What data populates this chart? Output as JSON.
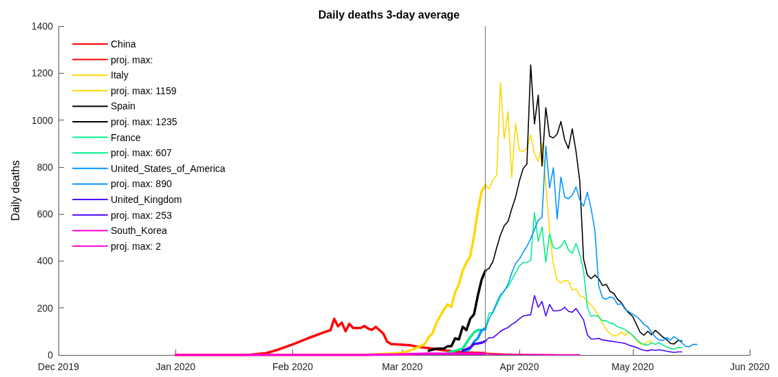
{
  "chart_data": {
    "type": "line",
    "title": "Daily deaths 3-day average",
    "ylabel": "Daily deaths",
    "xlim": [
      "2019-12-01",
      "2020-06-01"
    ],
    "xticks": [
      {
        "value": "2019-12-01",
        "label": "Dec 2019"
      },
      {
        "value": "2020-01-01",
        "label": "Jan 2020"
      },
      {
        "value": "2020-02-01",
        "label": "Feb 2020"
      },
      {
        "value": "2020-03-01",
        "label": "Mar 2020"
      },
      {
        "value": "2020-04-01",
        "label": "Apr 2020"
      },
      {
        "value": "2020-05-01",
        "label": "May 2020"
      },
      {
        "value": "2020-06-01",
        "label": "Jun 2020"
      }
    ],
    "ylim": [
      0,
      1400
    ],
    "yticks": [
      0,
      200,
      400,
      600,
      800,
      1000,
      1200,
      1400
    ],
    "grid": false,
    "legend": "top left",
    "marker": "none",
    "line_style": "solid",
    "ref_lines": [
      {
        "axis": "x",
        "value": "2020-03-23",
        "label": null,
        "color": "#707070"
      }
    ],
    "series": [
      {
        "name": "China",
        "color": "#ff0000",
        "x": [
          "2020-01-01",
          "2020-01-20",
          "2020-01-25",
          "2020-01-28",
          "2020-02-01",
          "2020-02-05",
          "2020-02-10",
          "2020-02-11",
          "2020-02-12",
          "2020-02-13",
          "2020-02-14",
          "2020-02-15",
          "2020-02-16",
          "2020-02-17",
          "2020-02-19",
          "2020-02-20",
          "2020-02-21",
          "2020-02-22",
          "2020-02-23",
          "2020-02-25",
          "2020-02-26",
          "2020-02-27",
          "2020-02-29",
          "2020-03-03",
          "2020-03-05",
          "2020-03-08",
          "2020-03-11",
          "2020-03-14",
          "2020-03-17",
          "2020-03-23"
        ],
        "values": [
          0,
          0,
          8,
          22,
          45,
          71,
          101,
          105,
          154,
          122,
          138,
          101,
          133,
          115,
          115,
          124,
          112,
          107,
          120,
          91,
          57,
          47,
          45,
          42,
          35,
          29,
          22,
          16,
          11,
          8
        ]
      },
      {
        "name": "proj. max:",
        "color": "#ff0000",
        "x": [
          "2020-03-23",
          "2020-03-28",
          "2020-04-03",
          "2020-04-10"
        ],
        "values": [
          8,
          4,
          2,
          1
        ]
      },
      {
        "name": "Italy",
        "color": "#ffd700",
        "x": [
          "2020-01-01",
          "2020-02-20",
          "2020-02-29",
          "2020-03-02",
          "2020-03-04",
          "2020-03-06",
          "2020-03-07",
          "2020-03-08",
          "2020-03-09",
          "2020-03-10",
          "2020-03-11",
          "2020-03-12",
          "2020-03-13",
          "2020-03-14",
          "2020-03-15",
          "2020-03-16",
          "2020-03-17",
          "2020-03-18",
          "2020-03-19",
          "2020-03-20",
          "2020-03-21",
          "2020-03-22",
          "2020-03-23"
        ],
        "values": [
          0,
          0,
          8,
          13,
          25,
          39,
          47,
          76,
          91,
          135,
          164,
          193,
          215,
          205,
          267,
          301,
          359,
          394,
          420,
          506,
          613,
          696,
          723
        ]
      },
      {
        "name": "proj. max: 1159",
        "color": "#ffd700",
        "x": [
          "2020-03-23",
          "2020-03-24",
          "2020-03-25",
          "2020-03-26",
          "2020-03-27",
          "2020-03-28",
          "2020-03-29",
          "2020-03-30",
          "2020-03-31",
          "2020-04-01",
          "2020-04-02",
          "2020-04-03",
          "2020-04-04",
          "2020-04-05",
          "2020-04-06",
          "2020-04-07",
          "2020-04-08",
          "2020-04-09",
          "2020-04-10",
          "2020-04-11",
          "2020-04-12",
          "2020-04-13",
          "2020-04-14",
          "2020-04-15",
          "2020-04-16",
          "2020-04-17",
          "2020-04-18",
          "2020-04-19",
          "2020-04-20",
          "2020-04-21",
          "2020-04-22",
          "2020-04-23",
          "2020-04-24",
          "2020-04-25",
          "2020-04-26",
          "2020-04-27",
          "2020-04-28",
          "2020-04-29",
          "2020-04-30",
          "2020-05-01",
          "2020-05-02",
          "2020-05-03",
          "2020-05-04",
          "2020-05-05",
          "2020-05-06"
        ],
        "values": [
          723,
          706,
          745,
          765,
          1159,
          921,
          1036,
          755,
          986,
          872,
          865,
          882,
          936,
          857,
          823,
          901,
          730,
          525,
          384,
          320,
          306,
          318,
          313,
          276,
          281,
          252,
          247,
          228,
          213,
          193,
          164,
          135,
          110,
          91,
          81,
          84,
          98,
          84,
          98,
          81,
          62,
          47,
          45,
          57,
          59
        ]
      },
      {
        "name": "Spain",
        "color": "#000000",
        "x": [
          "2020-03-08",
          "2020-03-10",
          "2020-03-12",
          "2020-03-13",
          "2020-03-14",
          "2020-03-15",
          "2020-03-16",
          "2020-03-17",
          "2020-03-18",
          "2020-03-19",
          "2020-03-20",
          "2020-03-21",
          "2020-03-22",
          "2020-03-23"
        ],
        "values": [
          18,
          27,
          27,
          37,
          37,
          71,
          66,
          120,
          106,
          154,
          173,
          252,
          320,
          359
        ]
      },
      {
        "name": "proj. max: 1235",
        "color": "#000000",
        "x": [
          "2020-03-23",
          "2020-03-24",
          "2020-03-25",
          "2020-03-26",
          "2020-03-27",
          "2020-03-28",
          "2020-03-29",
          "2020-03-30",
          "2020-03-31",
          "2020-04-01",
          "2020-04-02",
          "2020-04-03",
          "2020-04-04",
          "2020-04-05",
          "2020-04-06",
          "2020-04-07",
          "2020-04-08",
          "2020-04-09",
          "2020-04-10",
          "2020-04-11",
          "2020-04-12",
          "2020-04-13",
          "2020-04-14",
          "2020-04-15",
          "2020-04-16",
          "2020-04-17",
          "2020-04-18",
          "2020-04-19",
          "2020-04-20",
          "2020-04-21",
          "2020-04-22",
          "2020-04-23",
          "2020-04-24",
          "2020-04-25",
          "2020-04-26",
          "2020-04-27",
          "2020-04-28",
          "2020-04-29",
          "2020-04-30",
          "2020-05-01",
          "2020-05-02",
          "2020-05-03",
          "2020-05-04",
          "2020-05-05",
          "2020-05-06",
          "2020-05-07",
          "2020-05-08",
          "2020-05-09",
          "2020-05-10",
          "2020-05-11",
          "2020-05-12",
          "2020-05-13",
          "2020-05-14"
        ],
        "values": [
          359,
          369,
          398,
          457,
          511,
          550,
          569,
          623,
          672,
          740,
          794,
          813,
          1235,
          984,
          1106,
          804,
          1053,
          931,
          924,
          940,
          994,
          916,
          879,
          963,
          867,
          740,
          408,
          340,
          325,
          340,
          325,
          296,
          301,
          271,
          262,
          237,
          223,
          198,
          179,
          164,
          130,
          96,
          84,
          101,
          86,
          105,
          91,
          76,
          66,
          49,
          47,
          62,
          59
        ]
      },
      {
        "name": "France",
        "color": "#00ef8a",
        "x": [
          "2020-03-13",
          "2020-03-15",
          "2020-03-17",
          "2020-03-18",
          "2020-03-19",
          "2020-03-20",
          "2020-03-21",
          "2020-03-22",
          "2020-03-23"
        ],
        "values": [
          10,
          18,
          27,
          52,
          76,
          96,
          107,
          105,
          115
        ]
      },
      {
        "name": "proj. max: 607",
        "color": "#00ef8a",
        "x": [
          "2020-03-23",
          "2020-03-24",
          "2020-03-25",
          "2020-03-26",
          "2020-03-27",
          "2020-03-28",
          "2020-03-29",
          "2020-03-30",
          "2020-03-31",
          "2020-04-01",
          "2020-04-02",
          "2020-04-03",
          "2020-04-04",
          "2020-04-05",
          "2020-04-06",
          "2020-04-07",
          "2020-04-08",
          "2020-04-09",
          "2020-04-10",
          "2020-04-11",
          "2020-04-12",
          "2020-04-13",
          "2020-04-14",
          "2020-04-15",
          "2020-04-16",
          "2020-04-17",
          "2020-04-18",
          "2020-04-19",
          "2020-04-20",
          "2020-04-21",
          "2020-04-22",
          "2020-04-23",
          "2020-04-24",
          "2020-04-25",
          "2020-04-26",
          "2020-04-27",
          "2020-04-28",
          "2020-04-29",
          "2020-04-30",
          "2020-05-01",
          "2020-05-02",
          "2020-05-03",
          "2020-05-04",
          "2020-05-05",
          "2020-05-06",
          "2020-05-07",
          "2020-05-08",
          "2020-05-09",
          "2020-05-10",
          "2020-05-11",
          "2020-05-12",
          "2020-05-13",
          "2020-05-14"
        ],
        "values": [
          115,
          179,
          179,
          213,
          247,
          276,
          291,
          320,
          350,
          379,
          394,
          394,
          403,
          607,
          484,
          545,
          396,
          516,
          457,
          452,
          462,
          488,
          447,
          433,
          475,
          428,
          359,
          203,
          164,
          169,
          164,
          145,
          146,
          135,
          133,
          120,
          115,
          108,
          96,
          84,
          66,
          52,
          45,
          42,
          52,
          45,
          52,
          42,
          35,
          27,
          25,
          32,
          31
        ]
      },
      {
        "name": "United_States_of_America",
        "color": "#0095ff",
        "x": [
          "2020-03-17",
          "2020-03-18",
          "2020-03-19",
          "2020-03-20",
          "2020-03-21",
          "2020-03-22",
          "2020-03-23"
        ],
        "values": [
          18,
          18,
          27,
          57,
          71,
          105,
          110
        ]
      },
      {
        "name": "proj. max: 890",
        "color": "#0095ff",
        "x": [
          "2020-03-23",
          "2020-03-24",
          "2020-03-25",
          "2020-03-26",
          "2020-03-27",
          "2020-03-28",
          "2020-03-29",
          "2020-03-30",
          "2020-03-31",
          "2020-04-01",
          "2020-04-02",
          "2020-04-03",
          "2020-04-04",
          "2020-04-05",
          "2020-04-06",
          "2020-04-07",
          "2020-04-08",
          "2020-04-09",
          "2020-04-10",
          "2020-04-11",
          "2020-04-12",
          "2020-04-13",
          "2020-04-14",
          "2020-04-15",
          "2020-04-16",
          "2020-04-17",
          "2020-04-18",
          "2020-04-19",
          "2020-04-20",
          "2020-04-21",
          "2020-04-22",
          "2020-04-23",
          "2020-04-24",
          "2020-04-25",
          "2020-04-26",
          "2020-04-27",
          "2020-04-28",
          "2020-04-29",
          "2020-04-30",
          "2020-05-01",
          "2020-05-02",
          "2020-05-03",
          "2020-05-04",
          "2020-05-05",
          "2020-05-06",
          "2020-05-07",
          "2020-05-08",
          "2020-05-09",
          "2020-05-10",
          "2020-05-11",
          "2020-05-12",
          "2020-05-13",
          "2020-05-14",
          "2020-05-15",
          "2020-05-16",
          "2020-05-17",
          "2020-05-18"
        ],
        "values": [
          110,
          154,
          184,
          223,
          257,
          271,
          301,
          350,
          389,
          408,
          437,
          462,
          496,
          535,
          574,
          586,
          890,
          711,
          797,
          579,
          758,
          672,
          665,
          680,
          716,
          660,
          633,
          693,
          623,
          530,
          296,
          244,
          237,
          247,
          242,
          215,
          218,
          195,
          184,
          174,
          164,
          149,
          130,
          120,
          96,
          76,
          64,
          62,
          74,
          64,
          78,
          66,
          52,
          37,
          35,
          45,
          45
        ]
      },
      {
        "name": "United_Kingdom",
        "color": "#4a00ff",
        "x": [
          "2020-03-17",
          "2020-03-19",
          "2020-03-20",
          "2020-03-21",
          "2020-03-22",
          "2020-03-23"
        ],
        "values": [
          18,
          32,
          47,
          49,
          52,
          59
        ]
      },
      {
        "name": "proj. max: 253",
        "color": "#4a00ff",
        "x": [
          "2020-03-23",
          "2020-03-24",
          "2020-03-25",
          "2020-03-26",
          "2020-03-27",
          "2020-03-28",
          "2020-03-29",
          "2020-03-30",
          "2020-03-31",
          "2020-04-01",
          "2020-04-02",
          "2020-04-03",
          "2020-04-04",
          "2020-04-05",
          "2020-04-06",
          "2020-04-07",
          "2020-04-08",
          "2020-04-09",
          "2020-04-10",
          "2020-04-11",
          "2020-04-12",
          "2020-04-13",
          "2020-04-14",
          "2020-04-15",
          "2020-04-16",
          "2020-04-17",
          "2020-04-18",
          "2020-04-19",
          "2020-04-20",
          "2020-04-21",
          "2020-04-22",
          "2020-04-23",
          "2020-04-24",
          "2020-04-25",
          "2020-04-26",
          "2020-04-27",
          "2020-04-28",
          "2020-04-29",
          "2020-04-30",
          "2020-05-01",
          "2020-05-02",
          "2020-05-03",
          "2020-05-04",
          "2020-05-05",
          "2020-05-06",
          "2020-05-07",
          "2020-05-08",
          "2020-05-09",
          "2020-05-10",
          "2020-05-11",
          "2020-05-12",
          "2020-05-13",
          "2020-05-14"
        ],
        "values": [
          59,
          74,
          74,
          86,
          101,
          110,
          117,
          130,
          140,
          154,
          166,
          169,
          171,
          253,
          203,
          228,
          166,
          215,
          188,
          188,
          191,
          203,
          186,
          182,
          198,
          174,
          149,
          86,
          68,
          68,
          71,
          64,
          62,
          59,
          57,
          54,
          52,
          49,
          42,
          37,
          32,
          25,
          20,
          18,
          22,
          20,
          22,
          20,
          16,
          13,
          11,
          13,
          13
        ]
      },
      {
        "name": "South_Korea",
        "color": "#ff00d8",
        "x": [
          "2020-01-01",
          "2020-02-20",
          "2020-02-29",
          "2020-03-03",
          "2020-03-08",
          "2020-03-14",
          "2020-03-23"
        ],
        "values": [
          0,
          0,
          2,
          4,
          6,
          5,
          5
        ]
      },
      {
        "name": "proj. max: 2",
        "color": "#ff00d8",
        "x": [
          "2020-03-23",
          "2020-03-24",
          "2020-04-01",
          "2020-04-10",
          "2020-04-17"
        ],
        "values": [
          5,
          2,
          2,
          1,
          1
        ]
      }
    ]
  }
}
